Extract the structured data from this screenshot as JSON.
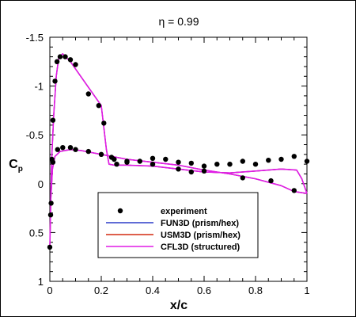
{
  "chart_data": {
    "type": "line",
    "title": "η = 0.99",
    "xlabel": "x/c",
    "ylabel": "C",
    "ylabel_sub": "p",
    "xlim": [
      0,
      1
    ],
    "ylim": [
      1,
      -1.5
    ],
    "y_inverted": true,
    "grid": false,
    "legend_placement": "bottom-center",
    "x_ticks": [
      {
        "value": 0,
        "label": "0"
      },
      {
        "value": 0.2,
        "label": "0.2"
      },
      {
        "value": 0.4,
        "label": "0.4"
      },
      {
        "value": 0.6,
        "label": "0.6"
      },
      {
        "value": 0.8,
        "label": "0.8"
      },
      {
        "value": 1,
        "label": "1"
      }
    ],
    "y_ticks": [
      {
        "value": -1.5,
        "label": "-1.5"
      },
      {
        "value": -1,
        "label": "-1"
      },
      {
        "value": -0.5,
        "label": "-0.5"
      },
      {
        "value": 0,
        "label": "0"
      },
      {
        "value": 0.5,
        "label": "0.5"
      },
      {
        "value": 1,
        "label": "1"
      }
    ],
    "experiment": {
      "name": "experiment",
      "marker": "filled-circle",
      "color": "#000000",
      "points": [
        [
          0.0,
          0.65
        ],
        [
          0.003,
          0.32
        ],
        [
          0.005,
          0.2
        ],
        [
          0.008,
          -0.25
        ],
        [
          0.012,
          -0.65
        ],
        [
          0.02,
          -1.05
        ],
        [
          0.028,
          -1.25
        ],
        [
          0.04,
          -1.3
        ],
        [
          0.06,
          -1.3
        ],
        [
          0.08,
          -1.27
        ],
        [
          0.1,
          -1.22
        ],
        [
          0.15,
          -0.92
        ],
        [
          0.19,
          -0.8
        ],
        [
          0.21,
          -0.62
        ],
        [
          0.24,
          -0.27
        ],
        [
          0.26,
          -0.2
        ],
        [
          0.012,
          -0.22
        ],
        [
          0.03,
          -0.35
        ],
        [
          0.05,
          -0.37
        ],
        [
          0.08,
          -0.37
        ],
        [
          0.1,
          -0.35
        ],
        [
          0.15,
          -0.33
        ],
        [
          0.2,
          -0.3
        ],
        [
          0.3,
          -0.23
        ],
        [
          0.35,
          -0.23
        ],
        [
          0.4,
          -0.26
        ],
        [
          0.45,
          -0.25
        ],
        [
          0.5,
          -0.22
        ],
        [
          0.55,
          -0.21
        ],
        [
          0.6,
          -0.18
        ],
        [
          0.65,
          -0.2
        ],
        [
          0.7,
          -0.2
        ],
        [
          0.75,
          -0.23
        ],
        [
          0.8,
          -0.2
        ],
        [
          0.85,
          -0.24
        ],
        [
          0.9,
          -0.25
        ],
        [
          0.95,
          -0.28
        ],
        [
          1.0,
          -0.23
        ],
        [
          0.25,
          -0.25
        ],
        [
          0.3,
          -0.22
        ],
        [
          0.4,
          -0.2
        ],
        [
          0.5,
          -0.15
        ],
        [
          0.55,
          -0.12
        ],
        [
          0.6,
          -0.13
        ],
        [
          0.75,
          -0.06
        ],
        [
          0.86,
          -0.03
        ],
        [
          0.95,
          0.07
        ]
      ]
    },
    "series": [
      {
        "name": "FUN3D (prism/hex)",
        "color": "#2b3bc8",
        "points": [
          [
            1.0,
            0.1
          ],
          [
            0.98,
            -0.05
          ],
          [
            0.96,
            -0.14
          ],
          [
            0.9,
            -0.15
          ],
          [
            0.8,
            -0.13
          ],
          [
            0.7,
            -0.11
          ],
          [
            0.6,
            -0.12
          ],
          [
            0.5,
            -0.15
          ],
          [
            0.4,
            -0.18
          ],
          [
            0.3,
            -0.19
          ],
          [
            0.25,
            -0.19
          ],
          [
            0.23,
            -0.2
          ],
          [
            0.22,
            -0.35
          ],
          [
            0.2,
            -0.8
          ],
          [
            0.16,
            -0.95
          ],
          [
            0.12,
            -1.1
          ],
          [
            0.08,
            -1.25
          ],
          [
            0.05,
            -1.33
          ],
          [
            0.035,
            -1.3
          ],
          [
            0.025,
            -1.1
          ],
          [
            0.015,
            -0.7
          ],
          [
            0.008,
            -0.3
          ],
          [
            0.004,
            0.1
          ],
          [
            0.0,
            0.65
          ],
          [
            0.004,
            0.15
          ],
          [
            0.01,
            -0.15
          ],
          [
            0.02,
            -0.28
          ],
          [
            0.04,
            -0.33
          ],
          [
            0.08,
            -0.35
          ],
          [
            0.12,
            -0.34
          ],
          [
            0.2,
            -0.3
          ],
          [
            0.3,
            -0.25
          ],
          [
            0.4,
            -0.22
          ],
          [
            0.5,
            -0.19
          ],
          [
            0.6,
            -0.14
          ],
          [
            0.7,
            -0.1
          ],
          [
            0.8,
            -0.05
          ],
          [
            0.9,
            0.02
          ],
          [
            0.95,
            0.08
          ],
          [
            1.0,
            0.1
          ]
        ]
      },
      {
        "name": "USM3D (prism/hex)",
        "color": "#d42a10",
        "points": [
          [
            1.0,
            0.1
          ],
          [
            0.98,
            -0.05
          ],
          [
            0.96,
            -0.14
          ],
          [
            0.9,
            -0.15
          ],
          [
            0.8,
            -0.13
          ],
          [
            0.7,
            -0.11
          ],
          [
            0.6,
            -0.12
          ],
          [
            0.5,
            -0.15
          ],
          [
            0.4,
            -0.18
          ],
          [
            0.3,
            -0.19
          ],
          [
            0.25,
            -0.19
          ],
          [
            0.23,
            -0.2
          ],
          [
            0.22,
            -0.35
          ],
          [
            0.2,
            -0.8
          ],
          [
            0.16,
            -0.95
          ],
          [
            0.12,
            -1.1
          ],
          [
            0.08,
            -1.25
          ],
          [
            0.05,
            -1.33
          ],
          [
            0.035,
            -1.3
          ],
          [
            0.025,
            -1.1
          ],
          [
            0.015,
            -0.7
          ],
          [
            0.008,
            -0.3
          ],
          [
            0.004,
            0.1
          ],
          [
            0.0,
            0.65
          ],
          [
            0.004,
            0.15
          ],
          [
            0.01,
            -0.15
          ],
          [
            0.02,
            -0.28
          ],
          [
            0.04,
            -0.33
          ],
          [
            0.08,
            -0.35
          ],
          [
            0.12,
            -0.34
          ],
          [
            0.2,
            -0.3
          ],
          [
            0.3,
            -0.25
          ],
          [
            0.4,
            -0.22
          ],
          [
            0.5,
            -0.19
          ],
          [
            0.6,
            -0.14
          ],
          [
            0.7,
            -0.1
          ],
          [
            0.8,
            -0.05
          ],
          [
            0.9,
            0.02
          ],
          [
            0.95,
            0.08
          ],
          [
            1.0,
            0.1
          ]
        ]
      },
      {
        "name": "CFL3D (structured)",
        "color": "#e01ce6",
        "points": [
          [
            1.0,
            0.1
          ],
          [
            0.98,
            -0.05
          ],
          [
            0.96,
            -0.14
          ],
          [
            0.9,
            -0.15
          ],
          [
            0.8,
            -0.13
          ],
          [
            0.7,
            -0.11
          ],
          [
            0.6,
            -0.12
          ],
          [
            0.5,
            -0.15
          ],
          [
            0.4,
            -0.18
          ],
          [
            0.3,
            -0.19
          ],
          [
            0.25,
            -0.19
          ],
          [
            0.23,
            -0.2
          ],
          [
            0.22,
            -0.35
          ],
          [
            0.2,
            -0.8
          ],
          [
            0.16,
            -0.95
          ],
          [
            0.12,
            -1.1
          ],
          [
            0.08,
            -1.25
          ],
          [
            0.05,
            -1.33
          ],
          [
            0.035,
            -1.3
          ],
          [
            0.025,
            -1.1
          ],
          [
            0.015,
            -0.7
          ],
          [
            0.008,
            -0.3
          ],
          [
            0.004,
            0.1
          ],
          [
            0.0,
            0.65
          ],
          [
            0.004,
            0.15
          ],
          [
            0.01,
            -0.15
          ],
          [
            0.02,
            -0.28
          ],
          [
            0.04,
            -0.33
          ],
          [
            0.08,
            -0.35
          ],
          [
            0.12,
            -0.34
          ],
          [
            0.2,
            -0.3
          ],
          [
            0.3,
            -0.25
          ],
          [
            0.4,
            -0.22
          ],
          [
            0.5,
            -0.19
          ],
          [
            0.6,
            -0.14
          ],
          [
            0.7,
            -0.1
          ],
          [
            0.8,
            -0.05
          ],
          [
            0.9,
            0.02
          ],
          [
            0.95,
            0.08
          ],
          [
            1.0,
            0.1
          ]
        ]
      }
    ]
  }
}
